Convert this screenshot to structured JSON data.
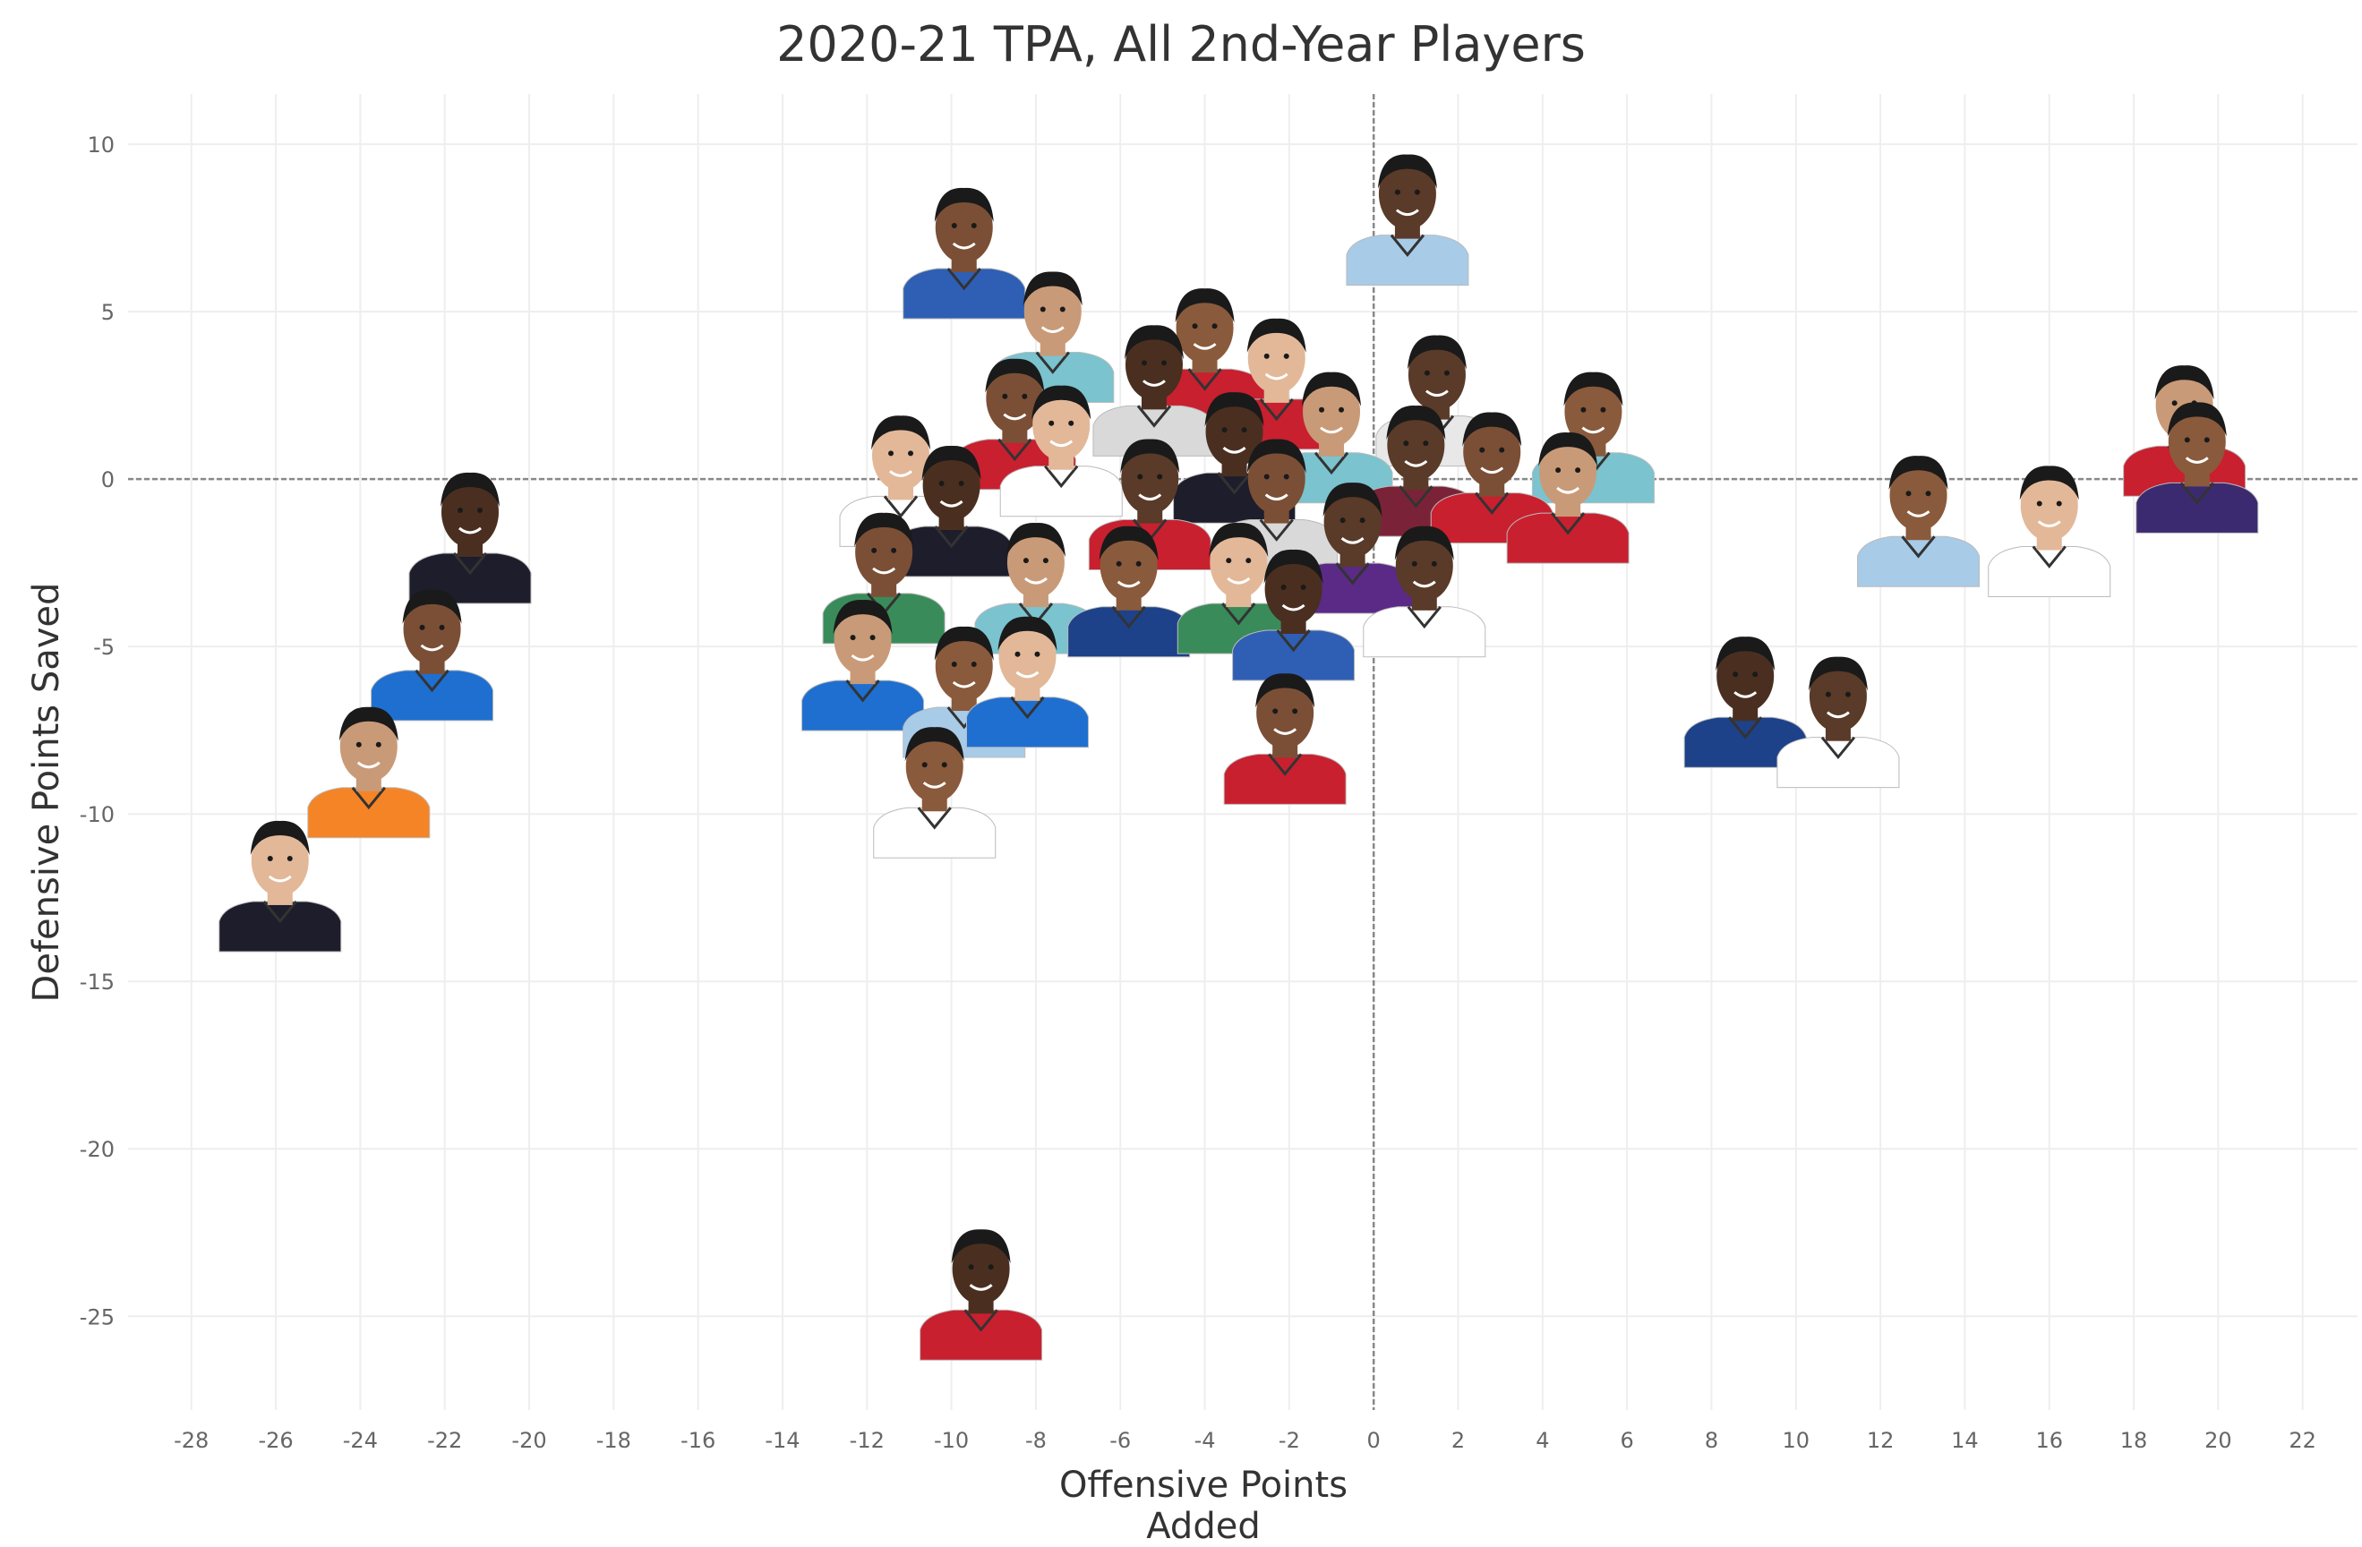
{
  "chart_data": {
    "type": "scatter",
    "title": "2020-21 TPA, All 2nd-Year Players",
    "xlabel": "Offensive Points Added",
    "ylabel": "Defensive Points Saved",
    "xlim": [
      -29.5,
      23.3
    ],
    "ylim": [
      -27.8,
      11.5
    ],
    "xticks": [
      -28,
      -26,
      -24,
      -22,
      -20,
      -18,
      -16,
      -14,
      -12,
      -10,
      -8,
      -6,
      -4,
      -2,
      0,
      2,
      4,
      6,
      8,
      10,
      12,
      14,
      16,
      18,
      20,
      22
    ],
    "yticks": [
      10,
      5,
      0,
      -5,
      -10,
      -15,
      -20,
      -25
    ],
    "grid": true,
    "reference_lines": {
      "x": 0,
      "y": 0
    },
    "marker": "player headshot",
    "points": [
      {
        "x": 0.8,
        "y": 7.5,
        "jersey": "#a8cbe8"
      },
      {
        "x": -9.7,
        "y": 6.5,
        "jersey": "#2f5fb4"
      },
      {
        "x": -7.6,
        "y": 4.0,
        "jersey": "#7ac3cf"
      },
      {
        "x": -4.0,
        "y": 3.5,
        "jersey": "#c8202f"
      },
      {
        "x": -2.3,
        "y": 2.6,
        "jersey": "#c8202f"
      },
      {
        "x": -5.2,
        "y": 2.4,
        "jersey": "#d9d9d9"
      },
      {
        "x": 1.5,
        "y": 2.1,
        "jersey": "#e8e8e8"
      },
      {
        "x": -8.5,
        "y": 1.4,
        "jersey": "#c8202f"
      },
      {
        "x": -1.0,
        "y": 1.0,
        "jersey": "#7ac3cf"
      },
      {
        "x": 5.2,
        "y": 1.0,
        "jersey": "#7ac3cf"
      },
      {
        "x": -7.4,
        "y": 0.6,
        "jersey": "#ffffff"
      },
      {
        "x": -3.3,
        "y": 0.4,
        "jersey": "#1d1d2b"
      },
      {
        "x": 1.0,
        "y": 0.0,
        "jersey": "#7a2338"
      },
      {
        "x": 2.8,
        "y": -0.2,
        "jersey": "#c8202f"
      },
      {
        "x": 19.2,
        "y": 1.2,
        "jersey": "#c8202f"
      },
      {
        "x": 19.5,
        "y": 0.1,
        "jersey": "#3b2a70"
      },
      {
        "x": -11.2,
        "y": -0.3,
        "jersey": "#ffffff"
      },
      {
        "x": -10.0,
        "y": -1.2,
        "jersey": "#1d1d2b"
      },
      {
        "x": -5.3,
        "y": -1.0,
        "jersey": "#c8202f"
      },
      {
        "x": -2.3,
        "y": -1.0,
        "jersey": "#d9d9d9"
      },
      {
        "x": 4.6,
        "y": -0.8,
        "jersey": "#c8202f"
      },
      {
        "x": 12.9,
        "y": -1.5,
        "jersey": "#a8cbe8"
      },
      {
        "x": 16.0,
        "y": -1.8,
        "jersey": "#ffffff"
      },
      {
        "x": -21.4,
        "y": -2.0,
        "jersey": "#1d1d2b"
      },
      {
        "x": -0.5,
        "y": -2.3,
        "jersey": "#5b2a86"
      },
      {
        "x": -11.6,
        "y": -3.2,
        "jersey": "#3a8b5a"
      },
      {
        "x": -8.0,
        "y": -3.5,
        "jersey": "#7ac3cf"
      },
      {
        "x": -5.8,
        "y": -3.6,
        "jersey": "#1d428a"
      },
      {
        "x": -3.2,
        "y": -3.5,
        "jersey": "#3a8b5a"
      },
      {
        "x": -1.9,
        "y": -4.3,
        "jersey": "#2f5fb4"
      },
      {
        "x": 1.2,
        "y": -3.6,
        "jersey": "#ffffff"
      },
      {
        "x": -22.3,
        "y": -5.5,
        "jersey": "#1e6fd0"
      },
      {
        "x": -12.1,
        "y": -5.8,
        "jersey": "#1e6fd0"
      },
      {
        "x": -9.7,
        "y": -6.6,
        "jersey": "#a8cbe8"
      },
      {
        "x": -8.2,
        "y": -6.3,
        "jersey": "#1e6fd0"
      },
      {
        "x": 8.8,
        "y": -6.9,
        "jersey": "#1d428a"
      },
      {
        "x": 11.0,
        "y": -7.5,
        "jersey": "#ffffff"
      },
      {
        "x": -2.1,
        "y": -8.0,
        "jersey": "#c8202f"
      },
      {
        "x": -23.8,
        "y": -9.0,
        "jersey": "#f58426"
      },
      {
        "x": -10.4,
        "y": -9.6,
        "jersey": "#ffffff"
      },
      {
        "x": -25.9,
        "y": -12.4,
        "jersey": "#1d1d2b"
      },
      {
        "x": -9.3,
        "y": -24.6,
        "jersey": "#c8202f"
      }
    ]
  }
}
